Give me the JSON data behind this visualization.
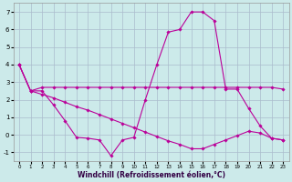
{
  "xlabel": "Windchill (Refroidissement éolien,°C)",
  "background_color": "#cceaea",
  "grid_color": "#aabbcc",
  "line_color": "#bb0099",
  "xlim": [
    -0.5,
    23.5
  ],
  "ylim": [
    -1.5,
    7.5
  ],
  "yticks": [
    -1,
    0,
    1,
    2,
    3,
    4,
    5,
    6,
    7
  ],
  "xticks": [
    0,
    1,
    2,
    3,
    4,
    5,
    6,
    7,
    8,
    9,
    10,
    11,
    12,
    13,
    14,
    15,
    16,
    17,
    18,
    19,
    20,
    21,
    22,
    23
  ],
  "series": [
    {
      "x": [
        0,
        1,
        2,
        3,
        4,
        5,
        6,
        7,
        8,
        9,
        10,
        11,
        12,
        13,
        14,
        15,
        16,
        17,
        18,
        19,
        20,
        21,
        22,
        23
      ],
      "y": [
        4.0,
        2.5,
        2.5,
        1.7,
        0.8,
        -0.15,
        -0.2,
        -0.3,
        -1.2,
        -0.3,
        -0.15,
        2.0,
        4.0,
        5.85,
        6.0,
        7.0,
        7.0,
        6.5,
        2.6,
        2.6,
        1.5,
        0.5,
        -0.2,
        -0.3
      ]
    },
    {
      "x": [
        0,
        1,
        2,
        3,
        4,
        5,
        6,
        7,
        8,
        9,
        10,
        11,
        12,
        13,
        14,
        15,
        16,
        17,
        18,
        19,
        20,
        21,
        22,
        23
      ],
      "y": [
        4.0,
        2.5,
        2.7,
        2.7,
        2.7,
        2.7,
        2.7,
        2.7,
        2.7,
        2.7,
        2.7,
        2.7,
        2.7,
        2.7,
        2.7,
        2.7,
        2.7,
        2.7,
        2.7,
        2.7,
        2.7,
        2.7,
        2.7,
        2.6
      ]
    },
    {
      "x": [
        0,
        1,
        2,
        3,
        4,
        5,
        6,
        7,
        8,
        9,
        10,
        11,
        12,
        13,
        14,
        15,
        16,
        17,
        18,
        19,
        20,
        21,
        22,
        23
      ],
      "y": [
        4.0,
        2.5,
        2.3,
        2.1,
        1.85,
        1.6,
        1.4,
        1.15,
        0.9,
        0.65,
        0.4,
        0.15,
        -0.1,
        -0.35,
        -0.55,
        -0.8,
        -0.8,
        -0.55,
        -0.3,
        -0.05,
        0.2,
        0.1,
        -0.2,
        -0.3
      ]
    }
  ]
}
